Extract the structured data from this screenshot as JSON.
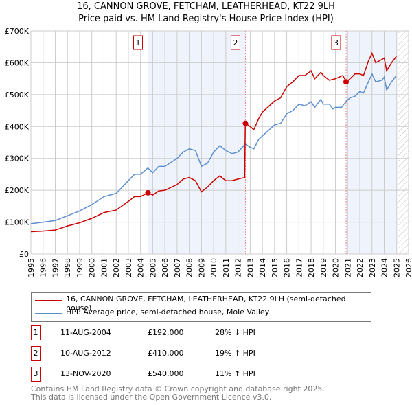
{
  "chart_data": {
    "type": "line",
    "title": "16, CANNON GROVE, FETCHAM, LEATHERHEAD, KT22 9LH",
    "subtitle": "Price paid vs. HM Land Registry's House Price Index (HPI)",
    "xlim": [
      1995,
      2026
    ],
    "ylim": [
      0,
      700000
    ],
    "x_ticks": [
      "1995",
      "1996",
      "1997",
      "1998",
      "1999",
      "2000",
      "2001",
      "2002",
      "2003",
      "2004",
      "2005",
      "2006",
      "2007",
      "2008",
      "2009",
      "2010",
      "2011",
      "2012",
      "2013",
      "2014",
      "2015",
      "2016",
      "2017",
      "2018",
      "2019",
      "2020",
      "2021",
      "2022",
      "2023",
      "2024",
      "2025",
      "2026"
    ],
    "y_ticks": [
      {
        "v": 0,
        "label": "£0"
      },
      {
        "v": 100000,
        "label": "£100K"
      },
      {
        "v": 200000,
        "label": "£200K"
      },
      {
        "v": 300000,
        "label": "£300K"
      },
      {
        "v": 400000,
        "label": "£400K"
      },
      {
        "v": 500000,
        "label": "£500K"
      },
      {
        "v": 600000,
        "label": "£600K"
      },
      {
        "v": 700000,
        "label": "£700K"
      }
    ],
    "grid": true,
    "series": [
      {
        "name": "16, CANNON GROVE, FETCHAM, LEATHERHEAD, KT22 9LH (semi-detached house)",
        "color": "#cc0000",
        "x": [
          1995,
          1996,
          1997,
          1998,
          1999,
          2000,
          2001,
          2002,
          2003,
          2003.5,
          2004,
          2004.6,
          2005,
          2005.5,
          2006,
          2007,
          2007.5,
          2008,
          2008.5,
          2009,
          2009.5,
          2010,
          2010.5,
          2011,
          2011.5,
          2012,
          2012.55,
          2012.6,
          2013,
          2013.3,
          2013.7,
          2014,
          2015,
          2015.5,
          2016,
          2016.5,
          2017,
          2017.5,
          2018,
          2018.3,
          2018.8,
          2019,
          2019.5,
          2020,
          2020.6,
          2020.9,
          2021.2,
          2021.6,
          2022,
          2022.3,
          2022.7,
          2023,
          2023.3,
          2023.8,
          2024,
          2024.2,
          2024.6,
          2025
        ],
        "y": [
          70000,
          72000,
          75000,
          88000,
          98000,
          112000,
          130000,
          138000,
          165000,
          180000,
          180000,
          192000,
          185000,
          198000,
          200000,
          218000,
          235000,
          240000,
          230000,
          195000,
          210000,
          230000,
          245000,
          230000,
          230000,
          235000,
          240000,
          410000,
          400000,
          390000,
          425000,
          445000,
          480000,
          490000,
          525000,
          540000,
          560000,
          560000,
          575000,
          550000,
          570000,
          560000,
          545000,
          550000,
          560000,
          540000,
          550000,
          565000,
          565000,
          560000,
          605000,
          630000,
          600000,
          610000,
          615000,
          575000,
          600000,
          620000
        ]
      },
      {
        "name": "HPI: Average price, semi-detached house, Mole Valley",
        "color": "#5b8fd0",
        "x": [
          1995,
          1996,
          1997,
          1998,
          1999,
          2000,
          2001,
          2002,
          2003,
          2003.5,
          2004,
          2004.6,
          2005,
          2005.5,
          2006,
          2007,
          2007.5,
          2008,
          2008.5,
          2009,
          2009.5,
          2010,
          2010.5,
          2011,
          2011.5,
          2012,
          2012.6,
          2013,
          2013.3,
          2013.7,
          2014,
          2015,
          2015.5,
          2016,
          2016.5,
          2017,
          2017.5,
          2018,
          2018.3,
          2018.8,
          2019,
          2019.5,
          2019.8,
          2020,
          2020.5,
          2020.9,
          2021.2,
          2021.6,
          2022,
          2022.3,
          2022.7,
          2023,
          2023.3,
          2023.8,
          2024,
          2024.2,
          2024.6,
          2025
        ],
        "y": [
          95000,
          100000,
          105000,
          120000,
          135000,
          155000,
          180000,
          190000,
          230000,
          250000,
          250000,
          270000,
          255000,
          275000,
          275000,
          300000,
          320000,
          330000,
          325000,
          275000,
          285000,
          320000,
          340000,
          325000,
          315000,
          320000,
          345000,
          335000,
          330000,
          360000,
          370000,
          405000,
          410000,
          440000,
          450000,
          470000,
          465000,
          478000,
          460000,
          485000,
          470000,
          470000,
          455000,
          460000,
          460000,
          480000,
          490000,
          495000,
          510000,
          505000,
          540000,
          565000,
          540000,
          545000,
          555000,
          515000,
          540000,
          560000
        ]
      }
    ],
    "sales": [
      {
        "label": "1",
        "date": "11-AUG-2004",
        "x": 2004.61,
        "price": "£192,000",
        "value": 192000,
        "hpi": "28% ↓ HPI"
      },
      {
        "label": "2",
        "date": "10-AUG-2012",
        "x": 2012.61,
        "price": "£410,000",
        "value": 410000,
        "hpi": "19% ↑ HPI"
      },
      {
        "label": "3",
        "date": "13-NOV-2020",
        "x": 2020.87,
        "price": "£540,000",
        "value": 540000,
        "hpi": "11% ↑ HPI"
      }
    ],
    "shaded_ranges": [
      [
        2004.61,
        2012.61
      ],
      [
        2020.87,
        2025.1
      ]
    ],
    "forecast_start": 2025.1
  },
  "footer": {
    "line1": "Contains HM Land Registry data © Crown copyright and database right 2025.",
    "line2": "This data is licensed under the Open Government Licence v3.0."
  }
}
